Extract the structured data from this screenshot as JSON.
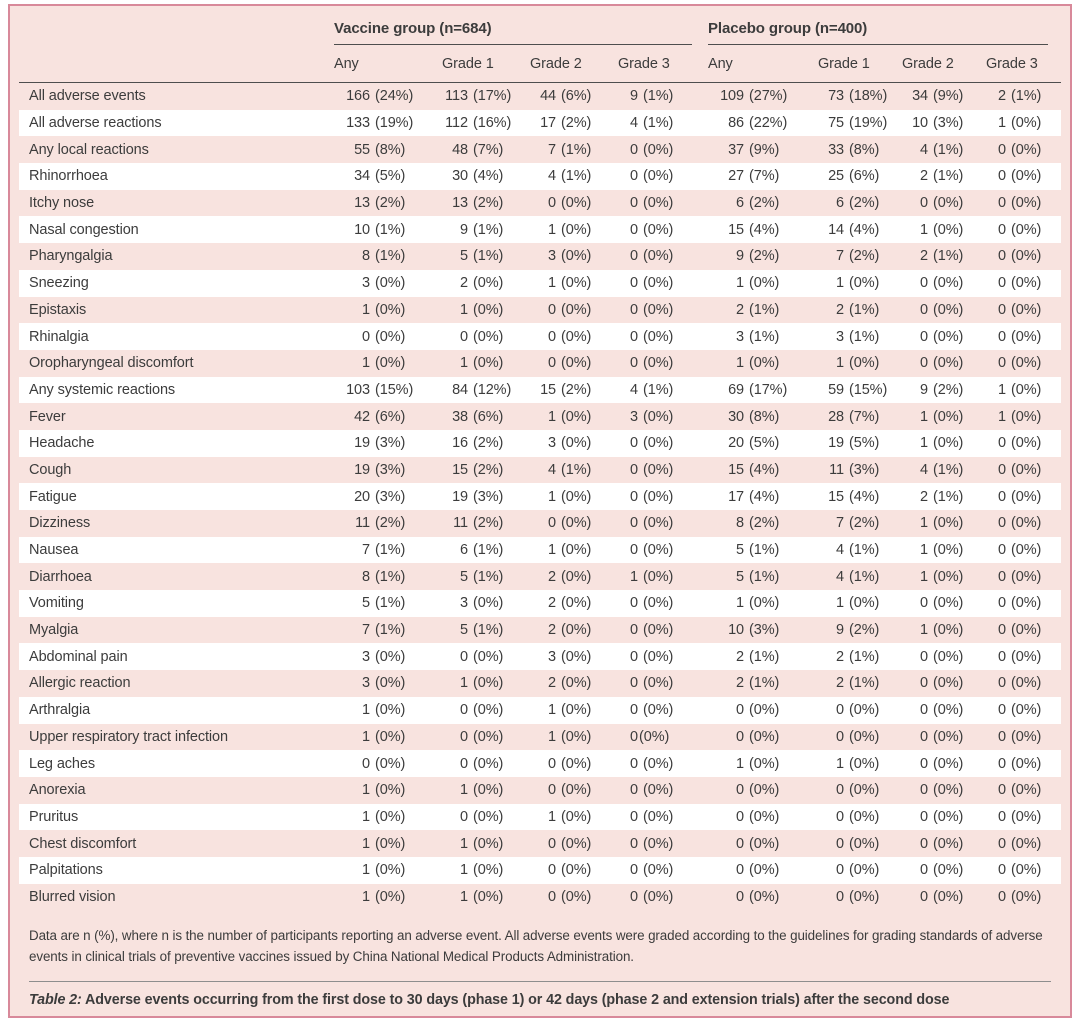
{
  "colors": {
    "frame_border": "#d8899a",
    "panel_background": "#f8e3df",
    "stripe_white": "#ffffff",
    "text": "#3c3c3c",
    "header_rule": "#4e4e4e",
    "caption_rule": "#8e8e8e"
  },
  "table": {
    "groups": [
      {
        "label": "Vaccine group (n=684)"
      },
      {
        "label": "Placebo group (n=400)"
      }
    ],
    "subheaders": [
      "Any",
      "Grade 1",
      "Grade 2",
      "Grade 3",
      "Any",
      "Grade 1",
      "Grade 2",
      "Grade 3"
    ],
    "rows": [
      {
        "label": "All adverse events",
        "values": [
          "166 (24%)",
          "113 (17%)",
          "44 (6%)",
          "9 (1%)",
          "109 (27%)",
          "73 (18%)",
          "34 (9%)",
          "2 (1%)"
        ]
      },
      {
        "label": "All adverse reactions",
        "values": [
          "133 (19%)",
          "112 (16%)",
          "17 (2%)",
          "4 (1%)",
          "86 (22%)",
          "75 (19%)",
          "10 (3%)",
          "1 (0%)"
        ]
      },
      {
        "label": "Any local reactions",
        "values": [
          "55 (8%)",
          "48 (7%)",
          "7 (1%)",
          "0 (0%)",
          "37 (9%)",
          "33 (8%)",
          "4 (1%)",
          "0 (0%)"
        ]
      },
      {
        "label": "Rhinorrhoea",
        "values": [
          "34 (5%)",
          "30 (4%)",
          "4 (1%)",
          "0 (0%)",
          "27 (7%)",
          "25 (6%)",
          "2 (1%)",
          "0 (0%)"
        ]
      },
      {
        "label": "Itchy nose",
        "values": [
          "13 (2%)",
          "13 (2%)",
          "0 (0%)",
          "0 (0%)",
          "6 (2%)",
          "6 (2%)",
          "0 (0%)",
          "0 (0%)"
        ]
      },
      {
        "label": "Nasal congestion",
        "values": [
          "10 (1%)",
          "9 (1%)",
          "1 (0%)",
          "0 (0%)",
          "15 (4%)",
          "14 (4%)",
          "1 (0%)",
          "0 (0%)"
        ]
      },
      {
        "label": "Pharyngalgia",
        "values": [
          "8 (1%)",
          "5 (1%)",
          "3 (0%)",
          "0 (0%)",
          "9 (2%)",
          "7 (2%)",
          "2 (1%)",
          "0 (0%)"
        ]
      },
      {
        "label": "Sneezing",
        "values": [
          "3 (0%)",
          "2 (0%)",
          "1 (0%)",
          "0 (0%)",
          "1 (0%)",
          "1 (0%)",
          "0 (0%)",
          "0 (0%)"
        ]
      },
      {
        "label": "Epistaxis",
        "values": [
          "1 (0%)",
          "1 (0%)",
          "0 (0%)",
          "0 (0%)",
          "2 (1%)",
          "2 (1%)",
          "0 (0%)",
          "0 (0%)"
        ]
      },
      {
        "label": "Rhinalgia",
        "values": [
          "0 (0%)",
          "0 (0%)",
          "0 (0%)",
          "0 (0%)",
          "3 (1%)",
          "3 (1%)",
          "0 (0%)",
          "0 (0%)"
        ]
      },
      {
        "label": "Oropharyngeal discomfort",
        "values": [
          "1 (0%)",
          "1 (0%)",
          "0 (0%)",
          "0 (0%)",
          "1 (0%)",
          "1 (0%)",
          "0 (0%)",
          "0 (0%)"
        ]
      },
      {
        "label": "Any systemic reactions",
        "values": [
          "103 (15%)",
          "84 (12%)",
          "15 (2%)",
          "4 (1%)",
          "69 (17%)",
          "59 (15%)",
          "9 (2%)",
          "1 (0%)"
        ]
      },
      {
        "label": "Fever",
        "values": [
          "42 (6%)",
          "38 (6%)",
          "1 (0%)",
          "3 (0%)",
          "30 (8%)",
          "28 (7%)",
          "1 (0%)",
          "1 (0%)"
        ]
      },
      {
        "label": "Headache",
        "values": [
          "19 (3%)",
          "16 (2%)",
          "3 (0%)",
          "0 (0%)",
          "20 (5%)",
          "19 (5%)",
          "1 (0%)",
          "0 (0%)"
        ]
      },
      {
        "label": "Cough",
        "values": [
          "19 (3%)",
          "15 (2%)",
          "4 (1%)",
          "0 (0%)",
          "15 (4%)",
          "11 (3%)",
          "4 (1%)",
          "0 (0%)"
        ]
      },
      {
        "label": "Fatigue",
        "values": [
          "20 (3%)",
          "19 (3%)",
          "1 (0%)",
          "0 (0%)",
          "17 (4%)",
          "15 (4%)",
          "2 (1%)",
          "0 (0%)"
        ]
      },
      {
        "label": "Dizziness",
        "values": [
          "11 (2%)",
          "11 (2%)",
          "0 (0%)",
          "0 (0%)",
          "8 (2%)",
          "7 (2%)",
          "1 (0%)",
          "0 (0%)"
        ]
      },
      {
        "label": "Nausea",
        "values": [
          "7 (1%)",
          "6 (1%)",
          "1 (0%)",
          "0 (0%)",
          "5 (1%)",
          "4 (1%)",
          "1 (0%)",
          "0 (0%)"
        ]
      },
      {
        "label": "Diarrhoea",
        "values": [
          "8 (1%)",
          "5 (1%)",
          "2 (0%)",
          "1 (0%)",
          "5 (1%)",
          "4 (1%)",
          "1 (0%)",
          "0 (0%)"
        ]
      },
      {
        "label": "Vomiting",
        "values": [
          "5 (1%)",
          "3 (0%)",
          "2 (0%)",
          "0 (0%)",
          "1 (0%)",
          "1 (0%)",
          "0 (0%)",
          "0 (0%)"
        ]
      },
      {
        "label": "Myalgia",
        "values": [
          "7 (1%)",
          "5 (1%)",
          "2 (0%)",
          "0 (0%)",
          "10 (3%)",
          "9 (2%)",
          "1 (0%)",
          "0 (0%)"
        ]
      },
      {
        "label": "Abdominal pain",
        "values": [
          "3 (0%)",
          "0 (0%)",
          "3 (0%)",
          "0 (0%)",
          "2 (1%)",
          "2 (1%)",
          "0 (0%)",
          "0 (0%)"
        ]
      },
      {
        "label": "Allergic reaction",
        "values": [
          "3 (0%)",
          "1 (0%)",
          "2 (0%)",
          "0 (0%)",
          "2 (1%)",
          "2 (1%)",
          "0 (0%)",
          "0 (0%)"
        ]
      },
      {
        "label": "Arthralgia",
        "values": [
          "1 (0%)",
          "0 (0%)",
          "1 (0%)",
          "0 (0%)",
          "0 (0%)",
          "0 (0%)",
          "0 (0%)",
          "0 (0%)"
        ]
      },
      {
        "label": "Upper respiratory tract infection",
        "values": [
          "1 (0%)",
          "0 (0%)",
          "1 (0%)",
          "0(0%)",
          "0 (0%)",
          "0 (0%)",
          "0 (0%)",
          "0 (0%)"
        ]
      },
      {
        "label": "Leg aches",
        "values": [
          "0 (0%)",
          "0 (0%)",
          "0 (0%)",
          "0 (0%)",
          "1 (0%)",
          "1 (0%)",
          "0 (0%)",
          "0 (0%)"
        ]
      },
      {
        "label": "Anorexia",
        "values": [
          "1 (0%)",
          "1 (0%)",
          "0 (0%)",
          "0 (0%)",
          "0 (0%)",
          "0 (0%)",
          "0 (0%)",
          "0 (0%)"
        ]
      },
      {
        "label": "Pruritus",
        "values": [
          "1 (0%)",
          "0 (0%)",
          "1 (0%)",
          "0 (0%)",
          "0 (0%)",
          "0 (0%)",
          "0 (0%)",
          "0 (0%)"
        ]
      },
      {
        "label": "Chest discomfort",
        "values": [
          "1 (0%)",
          "1 (0%)",
          "0 (0%)",
          "0 (0%)",
          "0 (0%)",
          "0 (0%)",
          "0 (0%)",
          "0 (0%)"
        ]
      },
      {
        "label": "Palpitations",
        "values": [
          "1 (0%)",
          "1 (0%)",
          "0 (0%)",
          "0 (0%)",
          "0 (0%)",
          "0 (0%)",
          "0 (0%)",
          "0 (0%)"
        ]
      },
      {
        "label": "Blurred vision",
        "values": [
          "1 (0%)",
          "1 (0%)",
          "0 (0%)",
          "0 (0%)",
          "0 (0%)",
          "0 (0%)",
          "0 (0%)",
          "0 (0%)"
        ]
      }
    ],
    "footnote": "Data are n (%), where n is the number of participants reporting an adverse event. All adverse events were graded according to the guidelines for grading standards of adverse events in clinical trials of preventive vaccines issued by China National Medical Products Administration.",
    "caption_label": "Table 2:",
    "caption_text": "Adverse events occurring from the first dose to 30 days (phase 1) or 42 days (phase 2 and extension trials) after the second dose"
  }
}
